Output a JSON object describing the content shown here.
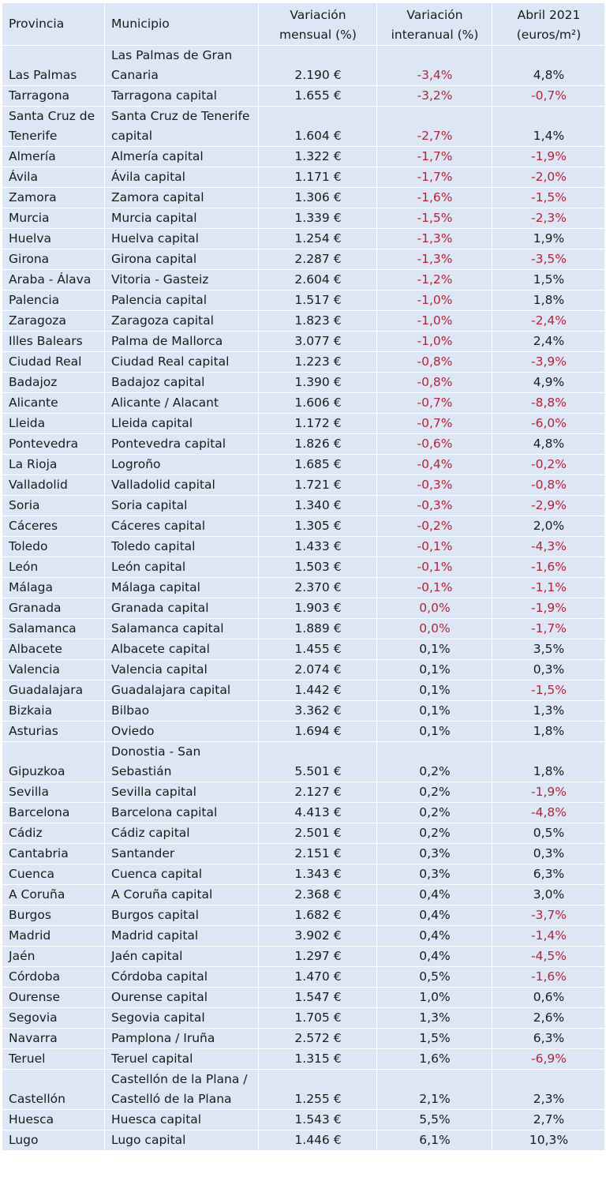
{
  "table": {
    "headers": [
      "Provincia",
      "Municipio",
      "Variación mensual (%)",
      "Variación interanual (%)",
      "Abril 2021 (euros/m²)"
    ],
    "rows": [
      {
        "provincia": "Las Palmas",
        "municipio": "Las Palmas de Gran Canaria",
        "mensual": "2.190 €",
        "interanual": "-3,4%",
        "abril": "4,8%"
      },
      {
        "provincia": "Tarragona",
        "municipio": "Tarragona capital",
        "mensual": "1.655 €",
        "interanual": "-3,2%",
        "abril": "-0,7%"
      },
      {
        "provincia": "Santa Cruz de Tenerife",
        "municipio": "Santa Cruz de Tenerife capital",
        "mensual": "1.604 €",
        "interanual": "-2,7%",
        "abril": "1,4%"
      },
      {
        "provincia": "Almería",
        "municipio": "Almería capital",
        "mensual": "1.322 €",
        "interanual": "-1,7%",
        "abril": "-1,9%"
      },
      {
        "provincia": "Ávila",
        "municipio": "Ávila capital",
        "mensual": "1.171 €",
        "interanual": "-1,7%",
        "abril": "-2,0%"
      },
      {
        "provincia": "Zamora",
        "municipio": "Zamora capital",
        "mensual": "1.306 €",
        "interanual": "-1,6%",
        "abril": "-1,5%"
      },
      {
        "provincia": "Murcia",
        "municipio": "Murcia capital",
        "mensual": "1.339 €",
        "interanual": "-1,5%",
        "abril": "-2,3%"
      },
      {
        "provincia": "Huelva",
        "municipio": "Huelva capital",
        "mensual": "1.254 €",
        "interanual": "-1,3%",
        "abril": "1,9%"
      },
      {
        "provincia": "Girona",
        "municipio": "Girona capital",
        "mensual": "2.287 €",
        "interanual": "-1,3%",
        "abril": "-3,5%"
      },
      {
        "provincia": "Araba - Álava",
        "municipio": "Vitoria - Gasteiz",
        "mensual": "2.604 €",
        "interanual": "-1,2%",
        "abril": "1,5%",
        "valign": "top"
      },
      {
        "provincia": "Palencia",
        "municipio": "Palencia capital",
        "mensual": "1.517 €",
        "interanual": "-1,0%",
        "abril": "1,8%"
      },
      {
        "provincia": "Zaragoza",
        "municipio": "Zaragoza capital",
        "mensual": "1.823 €",
        "interanual": "-1,0%",
        "abril": "-2,4%"
      },
      {
        "provincia": "Illes Balears",
        "municipio": "Palma de Mallorca",
        "mensual": "3.077 €",
        "interanual": "-1,0%",
        "abril": "2,4%"
      },
      {
        "provincia": "Ciudad Real",
        "municipio": "Ciudad Real capital",
        "mensual": "1.223 €",
        "interanual": "-0,8%",
        "abril": "-3,9%"
      },
      {
        "provincia": "Badajoz",
        "municipio": "Badajoz capital",
        "mensual": "1.390 €",
        "interanual": "-0,8%",
        "abril": "4,9%"
      },
      {
        "provincia": "Alicante",
        "municipio": "Alicante / Alacant",
        "mensual": "1.606 €",
        "interanual": "-0,7%",
        "abril": "-8,8%"
      },
      {
        "provincia": "Lleida",
        "municipio": "Lleida capital",
        "mensual": "1.172 €",
        "interanual": "-0,7%",
        "abril": "-6,0%"
      },
      {
        "provincia": "Pontevedra",
        "municipio": "Pontevedra capital",
        "mensual": "1.826 €",
        "interanual": "-0,6%",
        "abril": "4,8%"
      },
      {
        "provincia": "La Rioja",
        "municipio": "Logroño",
        "mensual": "1.685 €",
        "interanual": "-0,4%",
        "abril": "-0,2%"
      },
      {
        "provincia": "Valladolid",
        "municipio": "Valladolid capital",
        "mensual": "1.721 €",
        "interanual": "-0,3%",
        "abril": "-0,8%"
      },
      {
        "provincia": "Soria",
        "municipio": "Soria capital",
        "mensual": "1.340 €",
        "interanual": "-0,3%",
        "abril": "-2,9%"
      },
      {
        "provincia": "Cáceres",
        "municipio": "Cáceres capital",
        "mensual": "1.305 €",
        "interanual": "-0,2%",
        "abril": "2,0%"
      },
      {
        "provincia": "Toledo",
        "municipio": "Toledo capital",
        "mensual": "1.433 €",
        "interanual": "-0,1%",
        "abril": "-4,3%"
      },
      {
        "provincia": "León",
        "municipio": "León capital",
        "mensual": "1.503 €",
        "interanual": "-0,1%",
        "abril": "-1,6%"
      },
      {
        "provincia": "Málaga",
        "municipio": "Málaga capital",
        "mensual": "2.370 €",
        "interanual": "-0,1%",
        "abril": "-1,1%"
      },
      {
        "provincia": "Granada",
        "municipio": "Granada capital",
        "mensual": "1.903 €",
        "interanual": "0,0%",
        "abril": "-1,9%",
        "interanual_red": true
      },
      {
        "provincia": "Salamanca",
        "municipio": "Salamanca capital",
        "mensual": "1.889 €",
        "interanual": "0,0%",
        "abril": "-1,7%",
        "interanual_red": true
      },
      {
        "provincia": "Albacete",
        "municipio": "Albacete capital",
        "mensual": "1.455 €",
        "interanual": "0,1%",
        "abril": "3,5%"
      },
      {
        "provincia": "Valencia",
        "municipio": "Valencia capital",
        "mensual": "2.074 €",
        "interanual": "0,1%",
        "abril": "0,3%"
      },
      {
        "provincia": "Guadalajara",
        "municipio": "Guadalajara capital",
        "mensual": "1.442 €",
        "interanual": "0,1%",
        "abril": "-1,5%"
      },
      {
        "provincia": "Bizkaia",
        "municipio": "Bilbao",
        "mensual": "3.362 €",
        "interanual": "0,1%",
        "abril": "1,3%"
      },
      {
        "provincia": "Asturias",
        "municipio": "Oviedo",
        "mensual": "1.694 €",
        "interanual": "0,1%",
        "abril": "1,8%"
      },
      {
        "provincia": "Gipuzkoa",
        "municipio": "Donostia - San Sebastián",
        "mensual": "5.501 €",
        "interanual": "0,2%",
        "abril": "1,8%"
      },
      {
        "provincia": "Sevilla",
        "municipio": "Sevilla capital",
        "mensual": "2.127 €",
        "interanual": "0,2%",
        "abril": "-1,9%"
      },
      {
        "provincia": "Barcelona",
        "municipio": "Barcelona capital",
        "mensual": "4.413 €",
        "interanual": "0,2%",
        "abril": "-4,8%"
      },
      {
        "provincia": "Cádiz",
        "municipio": "Cádiz capital",
        "mensual": "2.501 €",
        "interanual": "0,2%",
        "abril": "0,5%"
      },
      {
        "provincia": "Cantabria",
        "municipio": "Santander",
        "mensual": "2.151 €",
        "interanual": "0,3%",
        "abril": "0,3%"
      },
      {
        "provincia": "Cuenca",
        "municipio": "Cuenca capital",
        "mensual": "1.343 €",
        "interanual": "0,3%",
        "abril": "6,3%"
      },
      {
        "provincia": "A Coruña",
        "municipio": "A Coruña capital",
        "mensual": "2.368 €",
        "interanual": "0,4%",
        "abril": "3,0%"
      },
      {
        "provincia": "Burgos",
        "municipio": "Burgos capital",
        "mensual": "1.682 €",
        "interanual": "0,4%",
        "abril": "-3,7%"
      },
      {
        "provincia": "Madrid",
        "municipio": "Madrid capital",
        "mensual": "3.902 €",
        "interanual": "0,4%",
        "abril": "-1,4%"
      },
      {
        "provincia": "Jaén",
        "municipio": "Jaén capital",
        "mensual": "1.297 €",
        "interanual": "0,4%",
        "abril": "-4,5%"
      },
      {
        "provincia": "Córdoba",
        "municipio": "Córdoba capital",
        "mensual": "1.470 €",
        "interanual": "0,5%",
        "abril": "-1,6%"
      },
      {
        "provincia": "Ourense",
        "municipio": "Ourense capital",
        "mensual": "1.547 €",
        "interanual": "1,0%",
        "abril": "0,6%"
      },
      {
        "provincia": "Segovia",
        "municipio": "Segovia capital",
        "mensual": "1.705 €",
        "interanual": "1,3%",
        "abril": "2,6%"
      },
      {
        "provincia": "Navarra",
        "municipio": "Pamplona / Iruña",
        "mensual": "2.572 €",
        "interanual": "1,5%",
        "abril": "6,3%"
      },
      {
        "provincia": "Teruel",
        "municipio": "Teruel capital",
        "mensual": "1.315 €",
        "interanual": "1,6%",
        "abril": "-6,9%"
      },
      {
        "provincia": "Castellón",
        "municipio": "Castellón de la Plana / Castelló de la Plana",
        "mensual": "1.255 €",
        "interanual": "2,1%",
        "abril": "2,3%"
      },
      {
        "provincia": "Huesca",
        "municipio": "Huesca capital",
        "mensual": "1.543 €",
        "interanual": "5,5%",
        "abril": "2,7%"
      },
      {
        "provincia": "Lugo",
        "municipio": "Lugo capital",
        "mensual": "1.446 €",
        "interanual": "6,1%",
        "abril": "10,3%"
      }
    ]
  }
}
